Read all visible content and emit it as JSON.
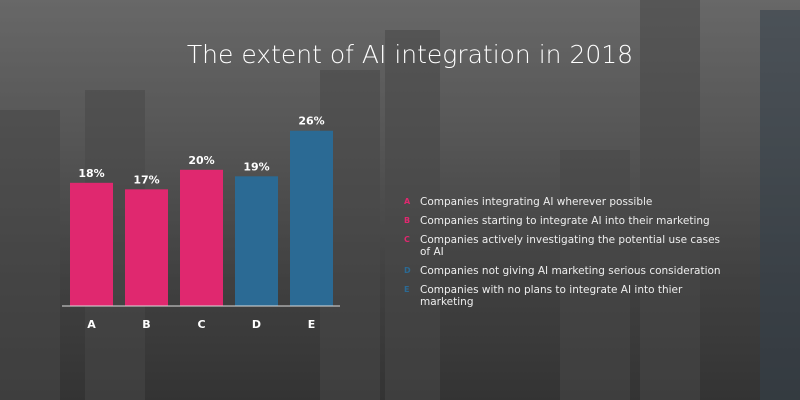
{
  "chart_data": {
    "type": "bar",
    "title": "The extent of AI integration in 2018",
    "categories": [
      "A",
      "B",
      "C",
      "D",
      "E"
    ],
    "values": [
      18,
      17,
      20,
      19,
      26
    ],
    "value_labels": [
      "18%",
      "17%",
      "20%",
      "19%",
      "26%"
    ],
    "colors": [
      "#e0286f",
      "#e0286f",
      "#e0286f",
      "#2b6a94",
      "#2b6a94"
    ],
    "ylim": [
      0,
      28
    ],
    "grid": false,
    "legend_position": "right",
    "legend": [
      {
        "key": "A",
        "label": "Companies integrating AI wherever possible"
      },
      {
        "key": "B",
        "label": "Companies starting to integrate AI into their marketing"
      },
      {
        "key": "C",
        "label": "Companies actively investigating the potential use cases of AI"
      },
      {
        "key": "D",
        "label": "Companies not giving AI marketing serious consideration"
      },
      {
        "key": "E",
        "label": "Companies with no plans to integrate AI into thier marketing"
      }
    ]
  }
}
